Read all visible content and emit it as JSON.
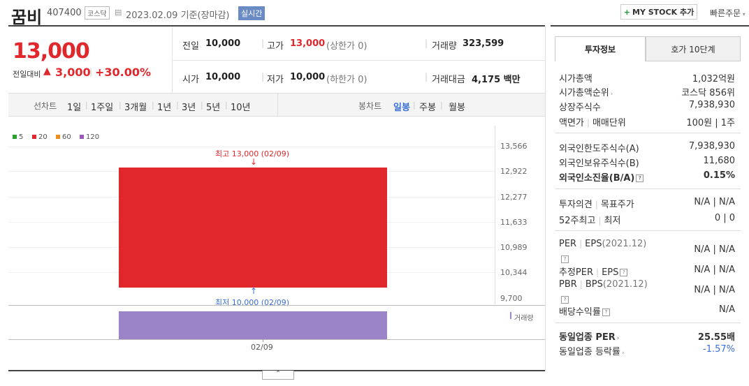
{
  "header": {
    "name": "꿈비",
    "code": "407400",
    "market": "코스닥",
    "date": "2023.02.09 기준(장마감)",
    "live": "실시간",
    "mystock": "MY STOCK 추가",
    "quick": "빠른주문"
  },
  "price": {
    "current": "13,000",
    "change_label": "전일대비",
    "change": "3,000",
    "change_pct": "+30.00%"
  },
  "summary": {
    "prev_label": "전일",
    "prev": "10,000",
    "high_label": "고가",
    "high": "13,000",
    "high_note": "(상한가 0)",
    "vol_label": "거래량",
    "vol": "323,599",
    "open_label": "시가",
    "open": "10,000",
    "low_label": "저가",
    "low": "10,000",
    "low_note": "(하한가 0)",
    "amount_label": "거래대금",
    "amount": "4,175 백만"
  },
  "periods": {
    "label": "선차트",
    "items": [
      "1일",
      "1주일",
      "3개월",
      "1년",
      "3년",
      "5년",
      "10년"
    ],
    "candle_label": "봉차트",
    "candle_items": [
      "일봉",
      "주봉",
      "월봉"
    ]
  },
  "legend": [
    "5",
    "20",
    "60",
    "120"
  ],
  "colors": {
    "ma5": "#2ca02c",
    "ma20": "#e0282c",
    "ma60": "#f08c1e",
    "ma120": "#9b59b6",
    "up": "#e0282c",
    "volume": "#9b84c8"
  },
  "chart_data": {
    "type": "candlestick",
    "x": [
      "02/09"
    ],
    "open": [
      10000
    ],
    "high": [
      13000
    ],
    "low": [
      10000
    ],
    "close": [
      13000
    ],
    "volume": [
      323599
    ],
    "yticks": [
      "13,566",
      "12,922",
      "12,277",
      "11,633",
      "10,989",
      "10,344",
      "9,700"
    ],
    "ylim": [
      9700,
      13566
    ],
    "high_annotation": "최고 13,000 (02/09)",
    "low_annotation": "최저 10,000 (02/09)",
    "volume_label": "거래량",
    "xtick": "02/09"
  },
  "panel": {
    "tab_active": "투자정보",
    "tab_inactive": "호가 10단계",
    "rows1": [
      {
        "label": "시가총액",
        "value": "1,032억원"
      },
      {
        "label": "시가총액순위",
        "value": "코스닥 856위"
      },
      {
        "label": "상장주식수",
        "value": "7,938,930"
      },
      {
        "label1": "액면가",
        "label2": "매매단위",
        "value": "100원 | 1주"
      }
    ],
    "rows2": [
      {
        "label": "외국인한도주식수(A)",
        "value": "7,938,930"
      },
      {
        "label": "외국인보유주식수(B)",
        "value": "11,680"
      },
      {
        "label": "외국인소진율(B/A)",
        "value": "0.15%"
      }
    ],
    "opinion_label": "투자의견",
    "target_label": "목표주가",
    "opinion_value": "N/A | N/A",
    "w52_label": "52주최고",
    "w52_low": "최저",
    "w52_value": "0 | 0",
    "per_label": "PER",
    "eps_label": "EPS",
    "per_year": "(2021.12)",
    "per_value": "N/A | N/A",
    "est_per_label": "추정PER",
    "est_eps_label": "EPS",
    "est_value": "N/A | N/A",
    "pbr_label": "PBR",
    "bps_label": "BPS",
    "pbr_year": "(2021.12)",
    "pbr_value": "N/A | N/A",
    "div_label": "배당수익률",
    "div_value": "N/A",
    "ind_per_label": "동일업종 PER",
    "ind_per_value": "25.55배",
    "ind_rate_label": "동일업종 등락률",
    "ind_rate_value": "-1.57%"
  }
}
